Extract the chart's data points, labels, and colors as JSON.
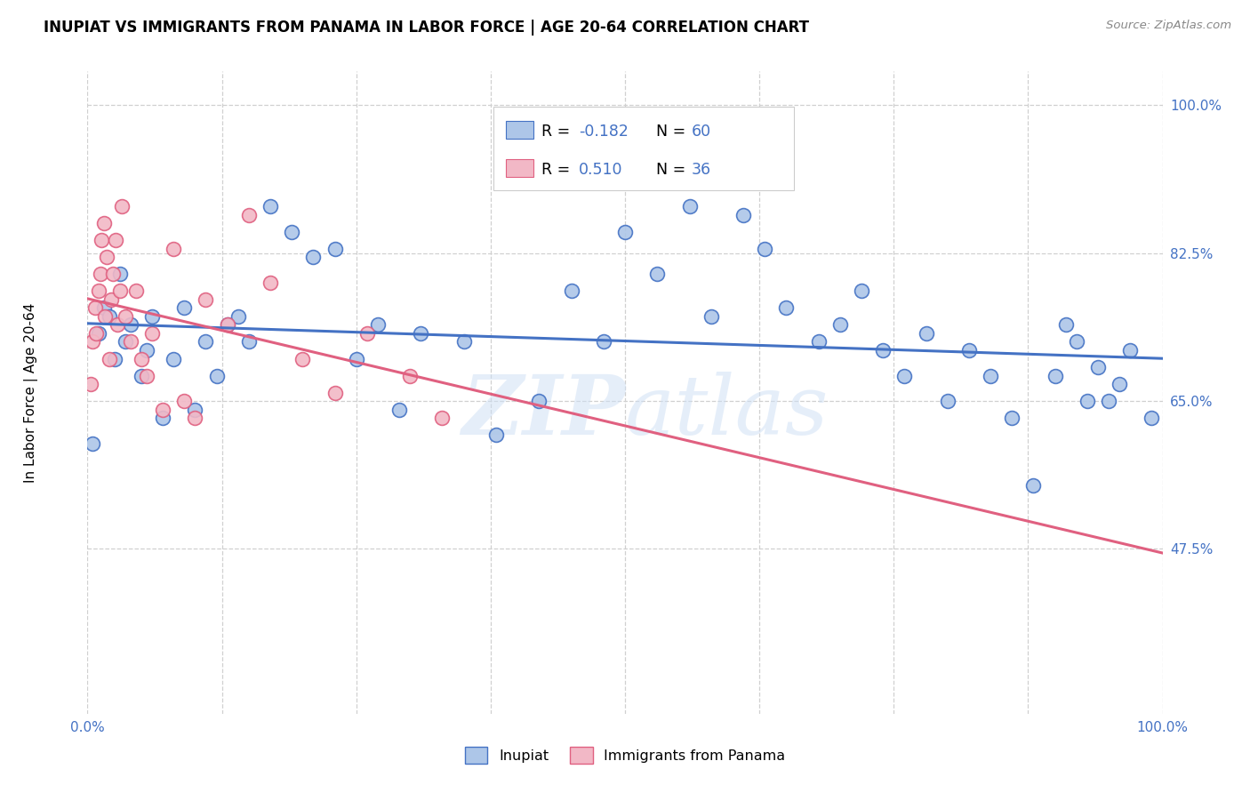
{
  "title": "INUPIAT VS IMMIGRANTS FROM PANAMA IN LABOR FORCE | AGE 20-64 CORRELATION CHART",
  "source": "Source: ZipAtlas.com",
  "ylabel": "In Labor Force | Age 20-64",
  "legend_labels": [
    "Inupiat",
    "Immigrants from Panama"
  ],
  "r_inupiat": -0.182,
  "n_inupiat": 60,
  "r_panama": 0.51,
  "n_panama": 36,
  "color_inupiat": "#adc6e8",
  "color_panama": "#f2b8c6",
  "line_color_inupiat": "#4472c4",
  "line_color_panama": "#e06080",
  "watermark": "ZIPatlas",
  "blue_text": "#4472c4",
  "inupiat_x": [
    0.5,
    1.0,
    1.5,
    2.0,
    2.5,
    3.0,
    3.5,
    4.0,
    5.0,
    5.5,
    6.0,
    7.0,
    8.0,
    9.0,
    10.0,
    11.0,
    12.0,
    13.0,
    14.0,
    15.0,
    17.0,
    19.0,
    21.0,
    23.0,
    25.0,
    27.0,
    29.0,
    31.0,
    35.0,
    38.0,
    42.0,
    45.0,
    48.0,
    50.0,
    53.0,
    56.0,
    58.0,
    61.0,
    63.0,
    65.0,
    68.0,
    70.0,
    72.0,
    74.0,
    76.0,
    78.0,
    80.0,
    82.0,
    84.0,
    86.0,
    88.0,
    90.0,
    91.0,
    92.0,
    93.0,
    94.0,
    95.0,
    96.0,
    97.0,
    99.0
  ],
  "inupiat_y": [
    60.0,
    73.0,
    76.0,
    75.0,
    70.0,
    80.0,
    72.0,
    74.0,
    68.0,
    71.0,
    75.0,
    63.0,
    70.0,
    76.0,
    64.0,
    72.0,
    68.0,
    74.0,
    75.0,
    72.0,
    88.0,
    85.0,
    82.0,
    83.0,
    70.0,
    74.0,
    64.0,
    73.0,
    72.0,
    61.0,
    65.0,
    78.0,
    72.0,
    85.0,
    80.0,
    88.0,
    75.0,
    87.0,
    83.0,
    76.0,
    72.0,
    74.0,
    78.0,
    71.0,
    68.0,
    73.0,
    65.0,
    71.0,
    68.0,
    63.0,
    55.0,
    68.0,
    74.0,
    72.0,
    65.0,
    69.0,
    65.0,
    67.0,
    71.0,
    63.0
  ],
  "panama_x": [
    0.3,
    0.5,
    0.7,
    0.8,
    1.0,
    1.2,
    1.3,
    1.5,
    1.6,
    1.8,
    2.0,
    2.2,
    2.4,
    2.6,
    2.8,
    3.0,
    3.2,
    3.5,
    4.0,
    4.5,
    5.0,
    5.5,
    6.0,
    7.0,
    8.0,
    9.0,
    10.0,
    11.0,
    13.0,
    15.0,
    17.0,
    20.0,
    23.0,
    26.0,
    30.0,
    33.0
  ],
  "panama_y": [
    67.0,
    72.0,
    76.0,
    73.0,
    78.0,
    80.0,
    84.0,
    86.0,
    75.0,
    82.0,
    70.0,
    77.0,
    80.0,
    84.0,
    74.0,
    78.0,
    88.0,
    75.0,
    72.0,
    78.0,
    70.0,
    68.0,
    73.0,
    64.0,
    83.0,
    65.0,
    63.0,
    77.0,
    74.0,
    87.0,
    79.0,
    70.0,
    66.0,
    73.0,
    68.0,
    63.0
  ],
  "xmin": 0,
  "xmax": 100,
  "ymin": 28,
  "ymax": 104
}
